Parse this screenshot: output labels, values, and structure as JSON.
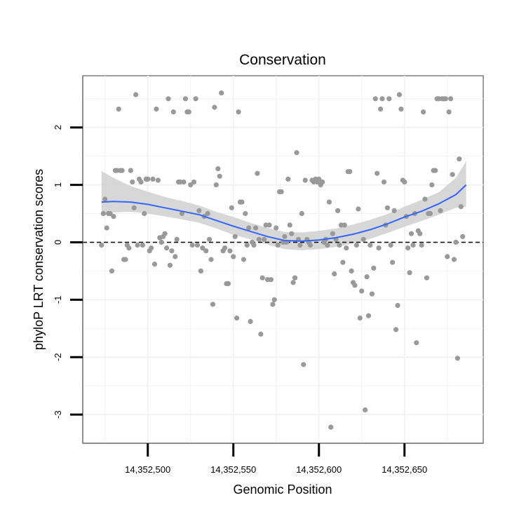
{
  "chart_data": {
    "type": "scatter",
    "title": "Conservation",
    "xlabel": "Genomic Position",
    "ylabel": "phyloP LRT conservation scores",
    "xlim": [
      14352462,
      14352696
    ],
    "ylim": [
      -3.5,
      2.9
    ],
    "xticks": [
      14352500,
      14352550,
      14352600,
      14352650
    ],
    "xtick_labels": [
      "14,352,500",
      "14,352,550",
      "14,352,600",
      "14,352,650"
    ],
    "yticks": [
      -3,
      -2,
      -1,
      0,
      1,
      2
    ],
    "ytick_labels": [
      "-3",
      "-2",
      "-1",
      "0",
      "1",
      "2"
    ],
    "grid": true,
    "reference_line": {
      "y": 0,
      "style": "dashed"
    },
    "points": [
      [
        14352473,
        -0.05
      ],
      [
        14352474,
        0.5
      ],
      [
        14352475,
        0.75
      ],
      [
        14352476,
        0.25
      ],
      [
        14352477,
        0.5
      ],
      [
        14352478,
        0.5
      ],
      [
        14352479,
        -0.5
      ],
      [
        14352480,
        0.45
      ],
      [
        14352481,
        1.25
      ],
      [
        14352482,
        1.25
      ],
      [
        14352483,
        2.32
      ],
      [
        14352484,
        1.25
      ],
      [
        14352485,
        1.25
      ],
      [
        14352486,
        -0.3
      ],
      [
        14352487,
        -0.3
      ],
      [
        14352488,
        -0.05
      ],
      [
        14352489,
        -0.1
      ],
      [
        14352490,
        1.25
      ],
      [
        14352491,
        1.05
      ],
      [
        14352492,
        0.6
      ],
      [
        14352493,
        2.57
      ],
      [
        14352494,
        -0.05
      ],
      [
        14352495,
        1.1
      ],
      [
        14352496,
        1.05
      ],
      [
        14352497,
        -0.05
      ],
      [
        14352498,
        0.5
      ],
      [
        14352499,
        1.1
      ],
      [
        14352500,
        1.1
      ],
      [
        14352501,
        -0.15
      ],
      [
        14352502,
        -0.1
      ],
      [
        14352503,
        1.1
      ],
      [
        14352504,
        -0.38
      ],
      [
        14352505,
        2.32
      ],
      [
        14352506,
        1.08
      ],
      [
        14352507,
        0.08
      ],
      [
        14352508,
        0.0
      ],
      [
        14352509,
        0.1
      ],
      [
        14352510,
        0.15
      ],
      [
        14352511,
        -0.1
      ],
      [
        14352512,
        2.5
      ],
      [
        14352513,
        -0.4
      ],
      [
        14352514,
        -0.15
      ],
      [
        14352515,
        2.27
      ],
      [
        14352516,
        -0.25
      ],
      [
        14352517,
        0.05
      ],
      [
        14352518,
        1.05
      ],
      [
        14352519,
        1.05
      ],
      [
        14352520,
        0.5
      ],
      [
        14352521,
        1.05
      ],
      [
        14352522,
        2.5
      ],
      [
        14352523,
        2.27
      ],
      [
        14352524,
        2.27
      ],
      [
        14352525,
        1.0
      ],
      [
        14352526,
        -0.05
      ],
      [
        14352527,
        1.05
      ],
      [
        14352528,
        2.5
      ],
      [
        14352529,
        -0.05
      ],
      [
        14352530,
        0.55
      ],
      [
        14352531,
        -0.5
      ],
      [
        14352532,
        -0.1
      ],
      [
        14352533,
        0.45
      ],
      [
        14352534,
        -0.15
      ],
      [
        14352535,
        0.5
      ],
      [
        14352536,
        0.05
      ],
      [
        14352537,
        -0.3
      ],
      [
        14352538,
        -1.08
      ],
      [
        14352539,
        2.35
      ],
      [
        14352540,
        1.0
      ],
      [
        14352541,
        1.28
      ],
      [
        14352542,
        1.15
      ],
      [
        14352543,
        2.6
      ],
      [
        14352544,
        -0.15
      ],
      [
        14352545,
        -0.1
      ],
      [
        14352546,
        -0.72
      ],
      [
        14352547,
        -0.72
      ],
      [
        14352548,
        -0.15
      ],
      [
        14352549,
        0.6
      ],
      [
        14352550,
        -0.25
      ],
      [
        14352551,
        0.1
      ],
      [
        14352552,
        -1.32
      ],
      [
        14352553,
        2.27
      ],
      [
        14352554,
        0.7
      ],
      [
        14352555,
        0.7
      ],
      [
        14352556,
        -0.3
      ],
      [
        14352557,
        0.5
      ],
      [
        14352558,
        -0.05
      ],
      [
        14352559,
        0.25
      ],
      [
        14352560,
        -1.38
      ],
      [
        14352561,
        0.0
      ],
      [
        14352562,
        -0.05
      ],
      [
        14352563,
        0.25
      ],
      [
        14352564,
        1.2
      ],
      [
        14352565,
        0.05
      ],
      [
        14352566,
        -1.6
      ],
      [
        14352567,
        -0.62
      ],
      [
        14352568,
        0.05
      ],
      [
        14352569,
        0.3
      ],
      [
        14352570,
        -0.65
      ],
      [
        14352571,
        0.3
      ],
      [
        14352572,
        -0.65
      ],
      [
        14352573,
        -1.08
      ],
      [
        14352574,
        -1.0
      ],
      [
        14352575,
        0.25
      ],
      [
        14352576,
        -0.05
      ],
      [
        14352577,
        0.88
      ],
      [
        14352578,
        0.88
      ],
      [
        14352579,
        0.0
      ],
      [
        14352580,
        0.1
      ],
      [
        14352581,
        0.0
      ],
      [
        14352582,
        1.1
      ],
      [
        14352583,
        0.3
      ],
      [
        14352584,
        0.15
      ],
      [
        14352585,
        -0.7
      ],
      [
        14352586,
        -0.62
      ],
      [
        14352587,
        1.56
      ],
      [
        14352588,
        0.05
      ],
      [
        14352589,
        -0.05
      ],
      [
        14352590,
        0.5
      ],
      [
        14352591,
        -2.13
      ],
      [
        14352592,
        1.08
      ],
      [
        14352593,
        0.05
      ],
      [
        14352594,
        0.0
      ],
      [
        14352595,
        -0.05
      ],
      [
        14352596,
        1.08
      ],
      [
        14352597,
        1.05
      ],
      [
        14352598,
        1.1
      ],
      [
        14352599,
        1.05
      ],
      [
        14352600,
        1.1
      ],
      [
        14352601,
        1.0
      ],
      [
        14352602,
        1.05
      ],
      [
        14352603,
        0.0
      ],
      [
        14352604,
        0.05
      ],
      [
        14352605,
        -0.05
      ],
      [
        14352606,
        0.7
      ],
      [
        14352607,
        -3.22
      ],
      [
        14352608,
        0.15
      ],
      [
        14352609,
        -0.55
      ],
      [
        14352610,
        0.05
      ],
      [
        14352611,
        0.55
      ],
      [
        14352612,
        -0.05
      ],
      [
        14352613,
        0.3
      ],
      [
        14352614,
        -0.35
      ],
      [
        14352615,
        0.3
      ],
      [
        14352616,
        -0.1
      ],
      [
        14352617,
        1.23
      ],
      [
        14352618,
        1.23
      ],
      [
        14352619,
        -0.5
      ],
      [
        14352620,
        -0.7
      ],
      [
        14352621,
        -0.75
      ],
      [
        14352622,
        -0.05
      ],
      [
        14352623,
        0.58
      ],
      [
        14352624,
        -1.32
      ],
      [
        14352625,
        -0.85
      ],
      [
        14352626,
        0.05
      ],
      [
        14352627,
        -2.92
      ],
      [
        14352628,
        -0.6
      ],
      [
        14352629,
        -1.28
      ],
      [
        14352630,
        -0.05
      ],
      [
        14352631,
        -0.9
      ],
      [
        14352632,
        -0.45
      ],
      [
        14352633,
        2.5
      ],
      [
        14352634,
        1.2
      ],
      [
        14352635,
        -0.1
      ],
      [
        14352636,
        2.32
      ],
      [
        14352637,
        2.5
      ],
      [
        14352638,
        1.05
      ],
      [
        14352639,
        0.3
      ],
      [
        14352640,
        0.6
      ],
      [
        14352641,
        2.5
      ],
      [
        14352642,
        -0.05
      ],
      [
        14352643,
        -0.35
      ],
      [
        14352644,
        0.55
      ],
      [
        14352645,
        -1.52
      ],
      [
        14352646,
        -1.1
      ],
      [
        14352647,
        2.57
      ],
      [
        14352648,
        2.32
      ],
      [
        14352649,
        1.08
      ],
      [
        14352650,
        1.05
      ],
      [
        14352651,
        0.45
      ],
      [
        14352652,
        -0.1
      ],
      [
        14352653,
        -0.53
      ],
      [
        14352654,
        0.15
      ],
      [
        14352655,
        -0.05
      ],
      [
        14352656,
        0.5
      ],
      [
        14352657,
        -1.75
      ],
      [
        14352658,
        0.2
      ],
      [
        14352659,
        0.15
      ],
      [
        14352660,
        -0.05
      ],
      [
        14352661,
        2.27
      ],
      [
        14352662,
        0.75
      ],
      [
        14352663,
        -0.62
      ],
      [
        14352664,
        0.5
      ],
      [
        14352665,
        0.5
      ],
      [
        14352666,
        1.0
      ],
      [
        14352667,
        1.25
      ],
      [
        14352668,
        1.25
      ],
      [
        14352669,
        2.5
      ],
      [
        14352670,
        2.5
      ],
      [
        14352671,
        0.55
      ],
      [
        14352672,
        2.5
      ],
      [
        14352673,
        2.5
      ],
      [
        14352674,
        2.5
      ],
      [
        14352675,
        -0.25
      ],
      [
        14352676,
        2.27
      ],
      [
        14352677,
        2.5
      ],
      [
        14352678,
        1.18
      ],
      [
        14352679,
        -0.3
      ],
      [
        14352680,
        0.0
      ],
      [
        14352681,
        -2.02
      ],
      [
        14352682,
        1.45
      ],
      [
        14352683,
        0.62
      ],
      [
        14352684,
        0.1
      ]
    ],
    "smooth_fit": {
      "method": "loess",
      "color": "#3366ff",
      "x": [
        14352473,
        14352480,
        14352490,
        14352500,
        14352510,
        14352520,
        14352530,
        14352540,
        14352550,
        14352560,
        14352570,
        14352580,
        14352590,
        14352600,
        14352610,
        14352620,
        14352630,
        14352640,
        14352650,
        14352660,
        14352670,
        14352680,
        14352686
      ],
      "y": [
        0.7,
        0.71,
        0.7,
        0.66,
        0.6,
        0.54,
        0.48,
        0.38,
        0.28,
        0.19,
        0.1,
        0.03,
        0.02,
        0.04,
        0.08,
        0.14,
        0.22,
        0.32,
        0.44,
        0.54,
        0.67,
        0.83,
        1.0
      ],
      "lower": [
        0.46,
        0.52,
        0.53,
        0.5,
        0.45,
        0.4,
        0.34,
        0.24,
        0.13,
        0.05,
        -0.04,
        -0.12,
        -0.14,
        -0.12,
        -0.08,
        -0.02,
        0.06,
        0.16,
        0.27,
        0.37,
        0.48,
        0.6,
        0.62
      ],
      "upper": [
        1.24,
        1.12,
        0.98,
        0.88,
        0.79,
        0.72,
        0.64,
        0.53,
        0.44,
        0.34,
        0.25,
        0.18,
        0.17,
        0.2,
        0.24,
        0.31,
        0.39,
        0.49,
        0.62,
        0.74,
        0.87,
        1.12,
        1.41
      ]
    },
    "point_color": "#999999",
    "band_color": "#d3d3d3"
  }
}
